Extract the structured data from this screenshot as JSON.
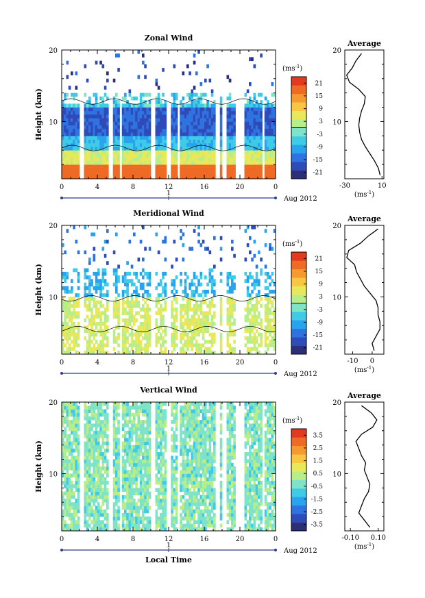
{
  "colors": {
    "colormap": [
      "#2b2f7a",
      "#2e4bb8",
      "#2f73e0",
      "#2aa3ef",
      "#3fcbe8",
      "#7fe3c8",
      "#b8ee8a",
      "#e8e85a",
      "#f8c640",
      "#f59a2f",
      "#ee6a25",
      "#e03a20"
    ],
    "axis": "#000000",
    "profile": "#000000"
  },
  "chart_data": [
    {
      "type": "heatmap",
      "name": "zonal",
      "title": "Zonal Wind",
      "ylabel": "Height (km)",
      "xlabel": "",
      "xlim": [
        0,
        24
      ],
      "ylim": [
        2,
        20
      ],
      "xticks": [
        "0",
        "4",
        "8",
        "12",
        "16",
        "20",
        "0"
      ],
      "yticks": [
        "20",
        "10"
      ],
      "date_axis": {
        "day": "1",
        "label": "Aug 2012"
      },
      "colorbar": {
        "unit": "(ms",
        "unit_exp": "-1",
        "unit_close": ")",
        "ticks": [
          "21",
          "15",
          "9",
          "3",
          "-3",
          "-9",
          "-15",
          "-21"
        ],
        "range": [
          -24,
          24
        ]
      },
      "profile": {
        "title": "Average",
        "xticks": [
          "-30",
          "10"
        ],
        "xlim": [
          -30,
          12
        ],
        "unit": "(ms",
        "unit_exp": "-1",
        "unit_close": ")",
        "yticks": [
          "20",
          "10"
        ],
        "z": [
          2.5,
          3.5,
          4.5,
          5.5,
          6.5,
          7.5,
          8.5,
          9.5,
          10.5,
          11.5,
          12.5,
          13.5,
          14.5,
          15.5,
          16.5,
          17.5,
          18.5,
          19.5
        ],
        "u": [
          8,
          6,
          2,
          -3,
          -8,
          -12,
          -14,
          -15,
          -14,
          -12,
          -9,
          -8,
          -15,
          -25,
          -28,
          -22,
          -18,
          -12
        ]
      }
    },
    {
      "type": "heatmap",
      "name": "meridional",
      "title": "Meridional Wind",
      "ylabel": "Height (km)",
      "xlabel": "",
      "xlim": [
        0,
        24
      ],
      "ylim": [
        2,
        20
      ],
      "xticks": [
        "0",
        "4",
        "8",
        "12",
        "16",
        "20",
        "0"
      ],
      "yticks": [
        "20",
        "10"
      ],
      "date_axis": {
        "day": "1",
        "label": "Aug 2012"
      },
      "colorbar": {
        "unit": "(ms",
        "unit_exp": "-1",
        "unit_close": ")",
        "ticks": [
          "21",
          "15",
          "9",
          "3",
          "-3",
          "-9",
          "-15",
          "-21"
        ],
        "range": [
          -24,
          24
        ]
      },
      "profile": {
        "title": "Average",
        "xticks": [
          "-10",
          "0"
        ],
        "xlim": [
          -14,
          6
        ],
        "unit": "(ms",
        "unit_exp": "-1",
        "unit_close": ")",
        "yticks": [
          "20",
          "10"
        ],
        "z": [
          2.5,
          3.5,
          4.5,
          5.5,
          6.5,
          7.5,
          8.5,
          9.5,
          10.5,
          11.5,
          12.5,
          13.5,
          14.5,
          15.5,
          16.5,
          17.5,
          18.5,
          19.5
        ],
        "u": [
          1,
          0,
          2,
          4,
          4,
          3,
          3,
          2,
          -1,
          -4,
          -6,
          -8,
          -9,
          -13,
          -12,
          -6,
          -2,
          3
        ]
      }
    },
    {
      "type": "heatmap",
      "name": "vertical",
      "title": "Vertical Wind",
      "ylabel": "Height (km)",
      "xlabel": "Local Time",
      "xlim": [
        0,
        24
      ],
      "ylim": [
        2,
        20
      ],
      "xticks": [
        "0",
        "4",
        "8",
        "12",
        "16",
        "20",
        "0"
      ],
      "yticks": [
        "20",
        "10"
      ],
      "date_axis": {
        "day": "1",
        "label": "Aug 2012"
      },
      "colorbar": {
        "unit": "(ms",
        "unit_exp": "-1",
        "unit_close": ")",
        "ticks": [
          "3.5",
          "2.5",
          "1.5",
          "0.5",
          "-0.5",
          "-1.5",
          "-2.5",
          "-3.5"
        ],
        "range": [
          -4,
          4
        ]
      },
      "profile": {
        "title": "Average",
        "xticks": [
          "-0.10",
          "0.10"
        ],
        "xlim": [
          -0.14,
          0.14
        ],
        "unit": "(ms",
        "unit_exp": "-1",
        "unit_close": ")",
        "yticks": [
          "20",
          "10"
        ],
        "z": [
          2.5,
          3.5,
          4.5,
          5.5,
          6.5,
          7.5,
          8.5,
          9.5,
          10.5,
          11.5,
          12.5,
          13.5,
          14.5,
          15.5,
          16.5,
          17.5,
          18.5,
          19.5
        ],
        "u": [
          0.04,
          0.0,
          -0.04,
          -0.02,
          0.0,
          0.03,
          0.04,
          0.02,
          0.0,
          0.01,
          -0.02,
          -0.04,
          -0.06,
          -0.02,
          0.06,
          0.09,
          0.05,
          -0.02
        ]
      }
    }
  ]
}
